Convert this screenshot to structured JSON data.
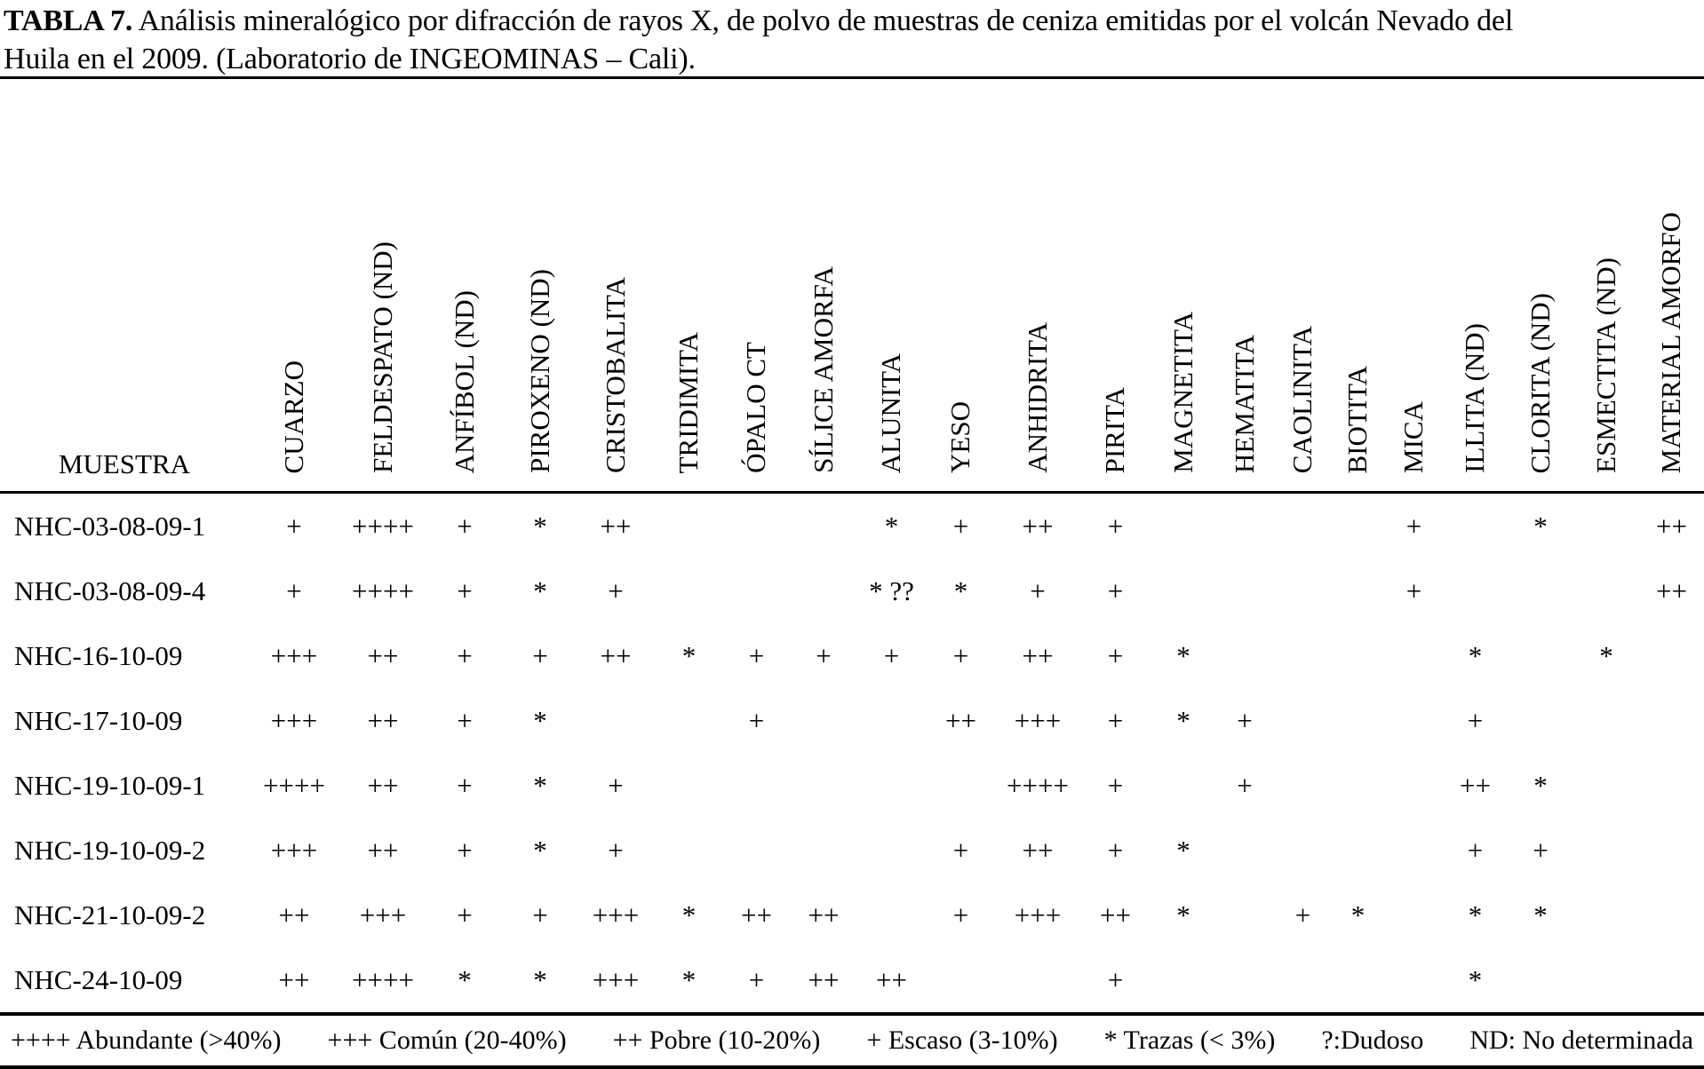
{
  "title": {
    "bold_label": "TABLA 7.",
    "rest_line1": " Análisis mineralógico por difracción de rayos X, de polvo de muestras de ceniza emitidas por el volcán Nevado del",
    "line2": "Huila en el 2009. (Laboratorio de INGEOMINAS – Cali)."
  },
  "table": {
    "row_header": "MUESTRA",
    "columns": [
      "CUARZO",
      "FELDESPATO (ND)",
      "ANFÍBOL (ND)",
      "PIROXENO (ND)",
      "CRISTOBALITA",
      "TRIDIMITA",
      "ÓPALO CT",
      "SÍLICE AMORFA",
      "ALUNITA",
      "YESO",
      "ANHIDRITA",
      "PIRITA",
      "MAGNETITA",
      "HEMATITA",
      "CAOLINITA",
      "BIOTITA",
      "MICA",
      "ILLITA (ND)",
      "CLORITA (ND)",
      "ESMECTITA (ND)",
      "MATERIAL AMORFO"
    ],
    "rows": [
      {
        "sample": "NHC-03-08-09-1",
        "values": [
          "+",
          "++++",
          "+",
          "*",
          "++",
          "",
          "",
          "",
          "*",
          "+",
          "++",
          "+",
          "",
          "",
          "",
          "",
          "+",
          "",
          "*",
          "",
          "++"
        ]
      },
      {
        "sample": "NHC-03-08-09-4",
        "values": [
          "+",
          "++++",
          "+",
          "*",
          "+",
          "",
          "",
          "",
          "* ??",
          "*",
          "+",
          "+",
          "",
          "",
          "",
          "",
          "+",
          "",
          "",
          "",
          "++"
        ]
      },
      {
        "sample": "NHC-16-10-09",
        "values": [
          "+++",
          "++",
          "+",
          "+",
          "++",
          "*",
          "+",
          "+",
          "+",
          "+",
          "++",
          "+",
          "*",
          "",
          "",
          "",
          "",
          "*",
          "",
          "*",
          ""
        ]
      },
      {
        "sample": "NHC-17-10-09",
        "values": [
          "+++",
          "++",
          "+",
          "*",
          "",
          "",
          "+",
          "",
          "",
          "++",
          "+++",
          "+",
          "*",
          "+",
          "",
          "",
          "",
          "+",
          "",
          "",
          ""
        ]
      },
      {
        "sample": "NHC-19-10-09-1",
        "values": [
          "++++",
          "++",
          "+",
          "*",
          "+",
          "",
          "",
          "",
          "",
          "",
          "++++",
          "+",
          "",
          "+",
          "",
          "",
          "",
          "++",
          "*",
          "",
          ""
        ]
      },
      {
        "sample": "NHC-19-10-09-2",
        "values": [
          "+++",
          "++",
          "+",
          "*",
          "+",
          "",
          "",
          "",
          "",
          "+",
          "++",
          "+",
          "*",
          "",
          "",
          "",
          "",
          "+",
          "+",
          "",
          ""
        ]
      },
      {
        "sample": "NHC-21-10-09-2",
        "values": [
          "++",
          "+++",
          "+",
          "+",
          "+++",
          "*",
          "++",
          "++",
          "",
          "+",
          "+++",
          "++",
          "*",
          "",
          "+",
          "*",
          "",
          "*",
          "*",
          "",
          ""
        ]
      },
      {
        "sample": "NHC-24-10-09",
        "values": [
          "++",
          "++++",
          "*",
          "*",
          "+++",
          "*",
          "+",
          "++",
          "++",
          "",
          "",
          "+",
          "",
          "",
          "",
          "",
          "",
          "*",
          "",
          "",
          ""
        ]
      }
    ]
  },
  "legend": {
    "items": [
      "++++ Abundante (>40%)",
      "+++ Común (20-40%)",
      "++ Pobre (10-20%)",
      "+ Escaso (3-10%)",
      "* Trazas (< 3%)",
      "?:Dudoso",
      "ND: No determinada"
    ]
  }
}
